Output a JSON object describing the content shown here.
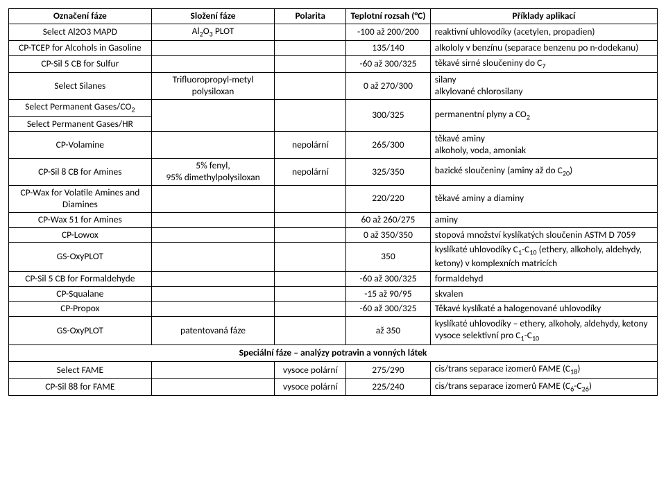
{
  "headers": {
    "col1": "Označení fáze",
    "col2": "Složení fáze",
    "col3": "Polarita",
    "col4": "Teplotní rozsah (°C)",
    "col5": "Příklady aplikací"
  },
  "section_label": "Speciální fáze – analýzy potravin a vonných látek",
  "rows": [
    {
      "c1": "Select Al2O3 MAPD",
      "c2": "Al₂O₃ PLOT",
      "c3": "",
      "c4": "-100 až 200/200",
      "c5": "reaktivní uhlovodíky (acetylen, propadien)"
    },
    {
      "c1": "CP-TCEP for Alcohols in Gasoline",
      "c2": "",
      "c3": "",
      "c4": "135/140",
      "c5": "alkololy v benzínu (separace benzenu po n-dodekanu)"
    },
    {
      "c1": "CP-Sil 5 CB for Sulfur",
      "c2": "",
      "c3": "",
      "c4": "-60 až 300/325",
      "c5": "těkavé sirné sloučeniny do C₇"
    },
    {
      "c1": "Select Silanes",
      "c2": "Trifluoropropyl-metyl polysiloxan",
      "c3": "",
      "c4": "0 až 270/300",
      "c5": "silany\nalkylované chlorosilany"
    },
    {
      "merge_c1": [
        "Select Permanent Gases/CO₂",
        "Select Permanent Gases/HR"
      ],
      "c2": "",
      "c3": "",
      "c4": "300/325",
      "c5": "permanentní plyny a CO₂"
    },
    {
      "c1": "CP-Volamine",
      "c2": "",
      "c3": "nepolární",
      "c4": "265/300",
      "c5": "těkavé aminy\nalkoholy, voda, amoniak"
    },
    {
      "c1": "CP-Sil 8 CB for Amines",
      "c2": "5% fenyl,\n95% dimethylpolysiloxan",
      "c3": "nepolární",
      "c4": "325/350",
      "c5": "bazické sloučeniny (aminy až do C₂₀)"
    },
    {
      "c1": "CP-Wax for Volatile Amines and Diamines",
      "c2": "",
      "c3": "",
      "c4": "220/220",
      "c5": "těkavé aminy a diaminy"
    },
    {
      "c1": "CP-Wax 51 for Amines",
      "c2": "",
      "c3": "",
      "c4": "60 až 260/275",
      "c5": "aminy"
    },
    {
      "c1": "CP-Lowox",
      "c2": "",
      "c3": "",
      "c4": "0 až 350/350",
      "c5": "stopová množství kyslíkatých sloučenin ASTM D 7059"
    },
    {
      "c1": "GS-OxyPLOT",
      "c2": "",
      "c3": "",
      "c4": "350",
      "c5": "kyslíkaté uhlovodíky C₁-C₁₀ (ethery, alkoholy, aldehydy, ketony) v komplexních matricích"
    },
    {
      "c1": "CP-Sil 5 CB for Formaldehyde",
      "c2": "",
      "c3": "",
      "c4": "-60 až 300/325",
      "c5": "formaldehyd"
    },
    {
      "c1": "CP-Squalane",
      "c2": "",
      "c3": "",
      "c4": "-15 až 90/95",
      "c5": "skvalen"
    },
    {
      "c1": "CP-Propox",
      "c2": "",
      "c3": "",
      "c4": "-60 až 300/325",
      "c5": "Těkavé kyslíkaté a halogenované uhlovodíky"
    },
    {
      "c1": "GS-OxyPLOT",
      "c2": "patentovaná fáze",
      "c3": "",
      "c4": "až 350",
      "c5": "kyslíkaté uhlovodíky – ethery, alkoholy, aldehydy, ketony\nvysoce selektivní pro C₁-C₁₀"
    },
    {
      "section": true
    },
    {
      "c1": "Select FAME",
      "c2": "",
      "c3": "vysoce polární",
      "c4": "275/290",
      "c5": "cis/trans separace izomerů FAME (C₁₈)"
    },
    {
      "c1": "CP-Sil 88 for FAME",
      "c2": "",
      "c3": "vysoce polární",
      "c4": "225/240",
      "c5": "cis/trans separace izomerů FAME (C₆-C₂₆)"
    }
  ]
}
